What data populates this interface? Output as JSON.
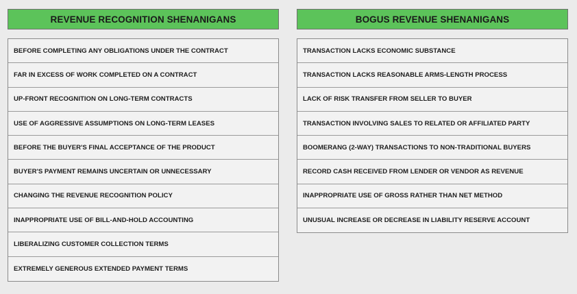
{
  "left": {
    "title": "REVENUE RECOGNITION SHENANIGANS",
    "items": [
      "BEFORE COMPLETING ANY OBLIGATIONS UNDER THE CONTRACT",
      "FAR IN EXCESS OF WORK COMPLETED ON A CONTRACT",
      "UP-FRONT RECOGNITION ON LONG-TERM CONTRACTS",
      "USE OF AGGRESSIVE ASSUMPTIONS ON LONG-TERM LEASES",
      "BEFORE THE BUYER'S FINAL ACCEPTANCE OF THE PRODUCT",
      "BUYER'S PAYMENT REMAINS UNCERTAIN OR UNNECESSARY",
      "CHANGING THE REVENUE RECOGNITION POLICY",
      "INAPPROPRIATE USE OF BILL-AND-HOLD ACCOUNTING",
      "LIBERALIZING CUSTOMER COLLECTION TERMS",
      "EXTREMELY GENEROUS EXTENDED PAYMENT TERMS"
    ]
  },
  "right": {
    "title": "BOGUS REVENUE SHENANIGANS",
    "items": [
      "TRANSACTION LACKS ECONOMIC SUBSTANCE",
      "TRANSACTION LACKS REASONABLE ARMS-LENGTH PROCESS",
      "LACK OF RISK TRANSFER FROM SELLER TO BUYER",
      "TRANSACTION INVOLVING SALES TO RELATED OR AFFILIATED PARTY",
      "BOOMERANG (2-WAY) TRANSACTIONS TO NON-TRADITIONAL BUYERS",
      "RECORD CASH RECEIVED FROM LENDER OR VENDOR AS REVENUE",
      "INAPPROPRIATE USE OF GROSS RATHER THAN NET METHOD",
      "UNUSUAL INCREASE OR DECREASE IN LIABILITY RESERVE ACCOUNT"
    ]
  },
  "colors": {
    "header_bg": "#5cc35a",
    "page_bg": "#ebebeb",
    "table_bg": "#f2f2f2"
  }
}
